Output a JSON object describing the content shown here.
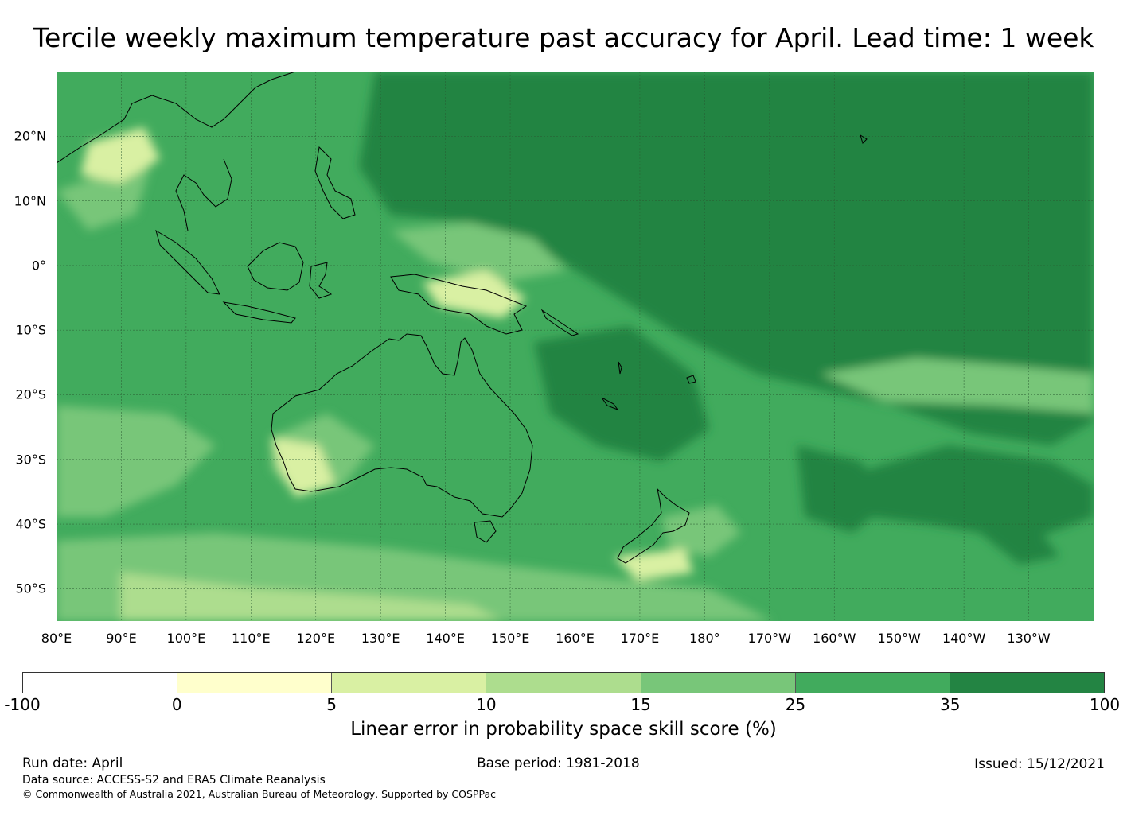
{
  "title": "Tercile weekly maximum temperature past accuracy for April. Lead time: 1 week",
  "map": {
    "lat_ticks": [
      "20°N",
      "10°N",
      "0°",
      "10°S",
      "20°S",
      "30°S",
      "40°S",
      "50°S"
    ],
    "lon_ticks": [
      "80°E",
      "90°E",
      "100°E",
      "110°E",
      "120°E",
      "130°E",
      "140°E",
      "150°E",
      "160°E",
      "170°E",
      "180°",
      "170°W",
      "160°W",
      "150°W",
      "140°W",
      "130°W"
    ],
    "lat_range": [
      -55,
      30
    ],
    "lon_range": [
      80,
      240
    ],
    "gridlines": true
  },
  "colorbar": {
    "boundaries": [
      "-100",
      "0",
      "5",
      "10",
      "15",
      "25",
      "35",
      "100"
    ],
    "colors": [
      "#ffffff",
      "#ffffcc",
      "#d9f0a3",
      "#addd8e",
      "#78c679",
      "#41ab5d",
      "#238443"
    ],
    "label": "Linear error in probability space skill score (%)"
  },
  "footer": {
    "run_date": "Run date: April",
    "base_period": "Base period: 1981-2018",
    "issued": "Issued: 15/12/2021",
    "data_source": "Data source: ACCESS-S2 and ERA5 Climate Reanalysis",
    "copyright": "© Commonwealth of Australia 2021, Australian Bureau of Meteorology, Supported by COSPPac"
  }
}
